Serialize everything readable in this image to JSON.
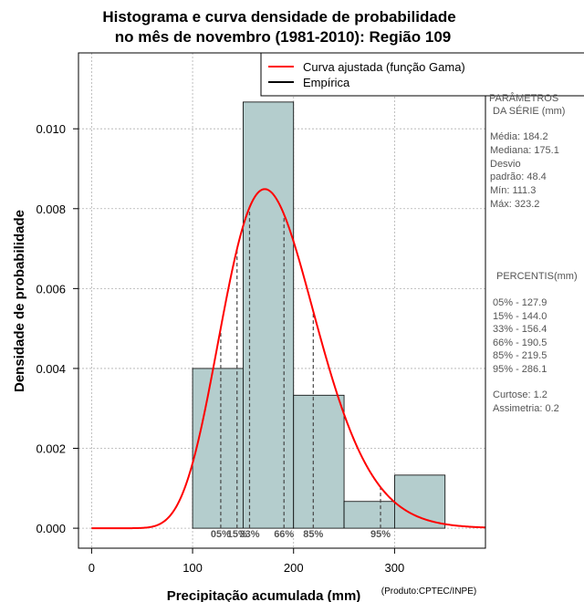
{
  "chart_data": {
    "type": "bar",
    "title_lines": [
      "Histograma e curva densidade de probabilidade",
      "no mês de novembro (1981-2010): Região 109"
    ],
    "xlabel": "Precipitação acumulada (mm)",
    "credit": "(Produto:CPTEC/INPE)",
    "ylabel": "Densidade de probabilidade",
    "xlim": [
      -13,
      390
    ],
    "ylim": [
      -0.0005,
      0.0119
    ],
    "x_ticks": [
      0,
      100,
      200,
      300
    ],
    "y_ticks": [
      0.0,
      0.002,
      0.004,
      0.006,
      0.008,
      0.01
    ],
    "y_tick_labels": [
      "0.000",
      "0.002",
      "0.004",
      "0.006",
      "0.008",
      "0.010"
    ],
    "grid": true,
    "bins": [
      {
        "x0": 100,
        "x1": 150,
        "density": 0.004
      },
      {
        "x0": 150,
        "x1": 200,
        "density": 0.01067
      },
      {
        "x0": 200,
        "x1": 250,
        "density": 0.00333
      },
      {
        "x0": 250,
        "x1": 300,
        "density": 0.00067
      },
      {
        "x0": 300,
        "x1": 350,
        "density": 0.00133
      }
    ],
    "curve": {
      "name": "Curva ajustada (função Gama)",
      "color": "#ff0000",
      "mean": 184.2,
      "sd": 48.4
    },
    "empirical": {
      "name": "Empírica",
      "color": "#000000"
    },
    "legend_position": "top-right",
    "percentile_lines": [
      {
        "label": "05%",
        "value": 127.9
      },
      {
        "label": "15%",
        "value": 144.0
      },
      {
        "label": "33%",
        "value": 156.4
      },
      {
        "label": "66%",
        "value": 190.5
      },
      {
        "label": "85%",
        "value": 219.5
      },
      {
        "label": "95%",
        "value": 286.1
      }
    ],
    "bar_color": "#b4cdcd"
  },
  "side_panel": {
    "params_title_1": "PARÂMETROS",
    "params_title_2": "DA SÉRIE (mm)",
    "media": "Média:  184.2",
    "mediana": "Mediana:  175.1",
    "desvio_1": "Desvio",
    "desvio_2": "padrão:  48.4",
    "min": "Mín:  111.3",
    "max": "Máx:  323.2",
    "percentis_title": "PERCENTIS(mm)",
    "p05": "05% -  127.9",
    "p15": "15% -  144.0",
    "p33": "33% -  156.4",
    "p66": "66% -  190.5",
    "p85": "85% -  219.5",
    "p95": "95% -  286.1",
    "curtose": "Curtose:  1.2",
    "assimetria": "Assimetria:  0.2"
  }
}
